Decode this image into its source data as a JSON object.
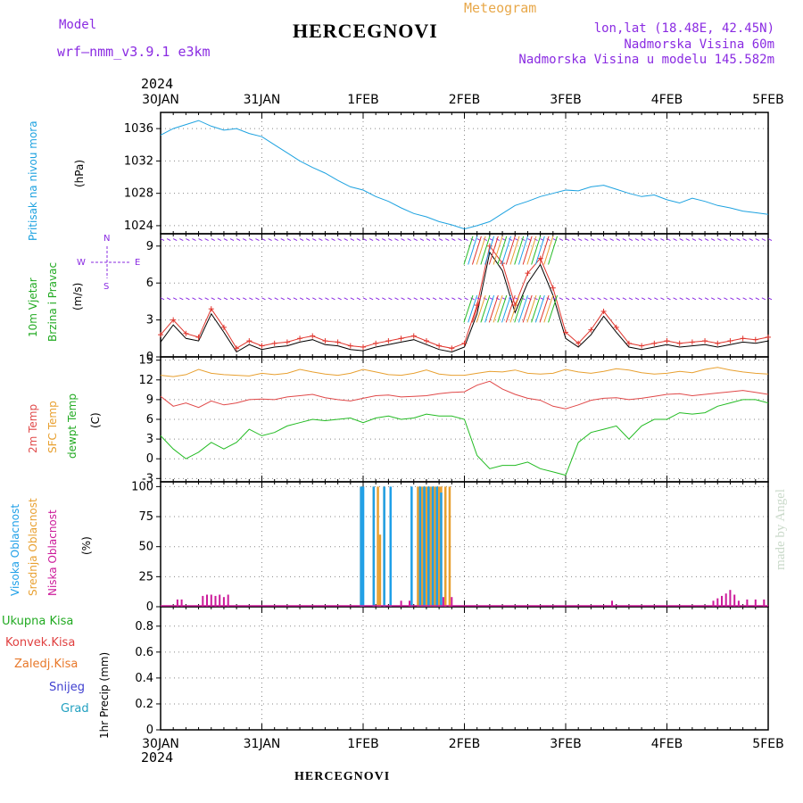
{
  "header": {
    "station": "HERCEGNOVI",
    "meteogram": "Meteogram",
    "model_label": "Model",
    "model_name": "wrf–nmm_v3.9.1 e3km",
    "lonlat": "lon,lat (18.48E, 42.45N)",
    "altitude": "Nadmorska Visina 60m",
    "altitude_model": "Nadmorska Visina u modelu 145.582m",
    "year": "2024",
    "credit": "made by Angel"
  },
  "colors": {
    "pressure": "#1da2e0",
    "wind_speed": "#000000",
    "wind_gust": "#e0342c",
    "t2m": "#e04848",
    "sfc": "#e8a030",
    "dewpt": "#22bb22",
    "cloud_high": "#1fa0e8",
    "cloud_mid": "#e8a030",
    "cloud_low": "#cc1a9a",
    "purple": "#8a2be2",
    "green": "#22aa22",
    "red": "#e04040",
    "orange": "#e8782a",
    "blue": "#4040d0",
    "cyan": "#20a0c0"
  },
  "chart_data": [
    {
      "type": "line",
      "name": "pressure",
      "ylabel_1": "Pritisak na nivou mora",
      "ylabel_2": "(hPa)",
      "x_ticks": [
        "30JAN",
        "31JAN",
        "1FEB",
        "2FEB",
        "3FEB",
        "4FEB",
        "5FEB"
      ],
      "yticks": [
        1024,
        1028,
        1032,
        1036
      ],
      "ylim": [
        1023,
        1038
      ],
      "x_hours": [
        0,
        3,
        6,
        9,
        12,
        15,
        18,
        21,
        24,
        27,
        30,
        33,
        36,
        39,
        42,
        45,
        48,
        51,
        54,
        57,
        60,
        63,
        66,
        69,
        72,
        75,
        78,
        81,
        84,
        87,
        90,
        93,
        96,
        99,
        102,
        105,
        108,
        111,
        114,
        117,
        120,
        123,
        126,
        129,
        132,
        135,
        138,
        141,
        144
      ],
      "values": [
        1035.2,
        1036.0,
        1036.5,
        1037.0,
        1036.3,
        1035.8,
        1036.0,
        1035.4,
        1035.0,
        1034.0,
        1033.0,
        1032.0,
        1031.2,
        1030.5,
        1029.6,
        1028.8,
        1028.4,
        1027.6,
        1027.0,
        1026.2,
        1025.5,
        1025.1,
        1024.5,
        1024.1,
        1023.6,
        1024.0,
        1024.5,
        1025.5,
        1026.5,
        1027.0,
        1027.6,
        1028.0,
        1028.4,
        1028.3,
        1028.8,
        1029.0,
        1028.5,
        1028.0,
        1027.6,
        1027.8,
        1027.2,
        1026.8,
        1027.4,
        1027.0,
        1026.5,
        1026.2,
        1025.8,
        1025.6,
        1025.4
      ]
    },
    {
      "type": "line",
      "name": "wind",
      "ylabel_1": "10m Vjetar",
      "ylabel_2": "Brzina i Pravac",
      "ylabel_3": "(m/s)",
      "compass_n": "N",
      "compass_w": "W",
      "compass_e": "E",
      "compass_s": "S",
      "x_ticks": [
        "30JAN",
        "31JAN",
        "1FEB",
        "2FEB",
        "3FEB",
        "4FEB",
        "5FEB"
      ],
      "yticks": [
        0,
        3,
        6,
        9
      ],
      "ylim": [
        0,
        10
      ],
      "x_hours": [
        0,
        3,
        6,
        9,
        12,
        15,
        18,
        21,
        24,
        27,
        30,
        33,
        36,
        39,
        42,
        45,
        48,
        51,
        54,
        57,
        60,
        63,
        66,
        69,
        72,
        75,
        78,
        81,
        84,
        87,
        90,
        93,
        96,
        99,
        102,
        105,
        108,
        111,
        114,
        117,
        120,
        123,
        126,
        129,
        132,
        135,
        138,
        141,
        144
      ],
      "speed": [
        1.2,
        2.6,
        1.5,
        1.3,
        3.5,
        2.0,
        0.4,
        1.0,
        0.6,
        0.8,
        0.9,
        1.2,
        1.4,
        1.0,
        0.9,
        0.6,
        0.5,
        0.8,
        1.0,
        1.2,
        1.4,
        1.0,
        0.6,
        0.4,
        0.8,
        3.5,
        8.5,
        7.0,
        3.6,
        6.0,
        7.5,
        5.0,
        1.5,
        0.8,
        1.8,
        3.3,
        2.0,
        0.8,
        0.6,
        0.8,
        1.0,
        0.8,
        0.9,
        1.0,
        0.8,
        1.0,
        1.2,
        1.1,
        1.3
      ],
      "gust": [
        1.8,
        3.0,
        1.9,
        1.6,
        3.9,
        2.4,
        0.7,
        1.3,
        0.9,
        1.1,
        1.2,
        1.5,
        1.7,
        1.3,
        1.2,
        0.9,
        0.8,
        1.1,
        1.3,
        1.5,
        1.7,
        1.3,
        0.9,
        0.7,
        1.1,
        4.2,
        9.0,
        7.6,
        4.2,
        6.8,
        8.0,
        5.6,
        2.0,
        1.1,
        2.2,
        3.7,
        2.4,
        1.1,
        0.9,
        1.1,
        1.3,
        1.1,
        1.2,
        1.3,
        1.1,
        1.3,
        1.5,
        1.4,
        1.6
      ]
    },
    {
      "type": "line",
      "name": "temperature",
      "ylabel_1": "2m Temp",
      "ylabel_2": "SFC Temp",
      "ylabel_3": "dewpt Temp",
      "ylabel_4": "(C)",
      "x_ticks": [
        "30JAN",
        "31JAN",
        "1FEB",
        "2FEB",
        "3FEB",
        "4FEB",
        "5FEB"
      ],
      "yticks": [
        -3,
        0,
        3,
        6,
        9,
        12,
        15
      ],
      "ylim": [
        -3.5,
        15.5
      ],
      "x_hours": [
        0,
        3,
        6,
        9,
        12,
        15,
        18,
        21,
        24,
        27,
        30,
        33,
        36,
        39,
        42,
        45,
        48,
        51,
        54,
        57,
        60,
        63,
        66,
        69,
        72,
        75,
        78,
        81,
        84,
        87,
        90,
        93,
        96,
        99,
        102,
        105,
        108,
        111,
        114,
        117,
        120,
        123,
        126,
        129,
        132,
        135,
        138,
        141,
        144
      ],
      "t2m": [
        9.5,
        8.0,
        8.5,
        7.8,
        8.8,
        8.2,
        8.5,
        9.0,
        9.1,
        9.0,
        9.4,
        9.6,
        9.8,
        9.3,
        9.0,
        8.8,
        9.2,
        9.6,
        9.7,
        9.4,
        9.5,
        9.6,
        9.9,
        10.1,
        10.2,
        11.2,
        11.8,
        10.6,
        9.8,
        9.2,
        8.9,
        8.0,
        7.6,
        8.2,
        8.9,
        9.2,
        9.3,
        9.0,
        9.2,
        9.5,
        9.8,
        9.9,
        9.6,
        9.8,
        10.0,
        10.2,
        10.4,
        10.1,
        9.8
      ],
      "sfc": [
        12.7,
        12.5,
        12.8,
        13.6,
        13.0,
        12.8,
        12.7,
        12.6,
        13.0,
        12.8,
        13.0,
        13.6,
        13.2,
        12.9,
        12.7,
        13.0,
        13.6,
        13.2,
        12.8,
        12.7,
        13.0,
        13.5,
        12.9,
        12.7,
        12.7,
        13.0,
        13.3,
        13.2,
        13.5,
        13.0,
        12.9,
        13.0,
        13.6,
        13.2,
        13.0,
        13.3,
        13.7,
        13.5,
        13.1,
        12.9,
        13.0,
        13.3,
        13.1,
        13.6,
        13.9,
        13.5,
        13.2,
        13.0,
        12.9
      ],
      "dewpt": [
        3.5,
        1.5,
        0.0,
        1.0,
        2.5,
        1.5,
        2.5,
        4.5,
        3.5,
        4.0,
        5.0,
        5.5,
        6.0,
        5.8,
        6.0,
        6.2,
        5.5,
        6.2,
        6.5,
        6.0,
        6.2,
        6.8,
        6.5,
        6.5,
        6.0,
        0.5,
        -1.5,
        -1.0,
        -1.0,
        -0.5,
        -1.5,
        -2.0,
        -2.5,
        2.5,
        4.0,
        4.5,
        5.0,
        3.0,
        5.0,
        6.0,
        6.0,
        7.0,
        6.8,
        7.0,
        8.0,
        8.5,
        9.0,
        9.0,
        8.5
      ]
    },
    {
      "type": "bar",
      "name": "cloud",
      "ylabel_1": "Visoka Oblacnost",
      "ylabel_2": "Srednja Oblacnost",
      "ylabel_3": "Niska Oblacnost",
      "ylabel_4": "(%)",
      "x_ticks": [
        "30JAN",
        "31JAN",
        "1FEB",
        "2FEB",
        "3FEB",
        "4FEB",
        "5FEB"
      ],
      "yticks": [
        0,
        25,
        50,
        75,
        100
      ],
      "ylim": [
        0,
        104
      ],
      "high": [
        [
          47.5,
          100
        ],
        [
          48,
          100
        ],
        [
          50.5,
          100
        ],
        [
          53,
          100
        ],
        [
          54.5,
          100
        ],
        [
          59.5,
          100
        ],
        [
          61.5,
          100
        ],
        [
          62.5,
          100
        ],
        [
          63.5,
          100
        ],
        [
          64.5,
          100
        ],
        [
          65.5,
          100
        ],
        [
          66.5,
          95
        ]
      ],
      "mid": [
        [
          47.5,
          100
        ],
        [
          50.5,
          100
        ],
        [
          51.5,
          100
        ],
        [
          52,
          60
        ],
        [
          53,
          100
        ],
        [
          61,
          100
        ],
        [
          61.5,
          100
        ],
        [
          62,
          100
        ],
        [
          62.5,
          100
        ],
        [
          63,
          100
        ],
        [
          63.5,
          100
        ],
        [
          64,
          100
        ],
        [
          64.5,
          100
        ],
        [
          65,
          100
        ],
        [
          65.5,
          100
        ],
        [
          66,
          100
        ],
        [
          66.5,
          100
        ],
        [
          67.5,
          100
        ],
        [
          68.5,
          100
        ]
      ],
      "low": [
        [
          4,
          6
        ],
        [
          5,
          6
        ],
        [
          10,
          9
        ],
        [
          11,
          10
        ],
        [
          12,
          10
        ],
        [
          13,
          9
        ],
        [
          14,
          10
        ],
        [
          15,
          8
        ],
        [
          16,
          10
        ],
        [
          57,
          5
        ],
        [
          59,
          5
        ],
        [
          67,
          8
        ],
        [
          69,
          8
        ],
        [
          107,
          5
        ],
        [
          131,
          5
        ],
        [
          132,
          7
        ],
        [
          133,
          9
        ],
        [
          134,
          11
        ],
        [
          135,
          14
        ],
        [
          136,
          10
        ],
        [
          137,
          5
        ],
        [
          139,
          6
        ],
        [
          141,
          6
        ],
        [
          143,
          6
        ]
      ]
    },
    {
      "type": "bar",
      "name": "precip",
      "ylabel_1": "Ukupna Kisa",
      "ylabel_2": "Konvek.Kisa",
      "ylabel_3": "Zaledj.Kisa",
      "ylabel_4": "Snijeg",
      "ylabel_5": "Grad",
      "ylabel_6": "1hr Precip (mm)",
      "x_ticks": [
        "30JAN",
        "31JAN",
        "1FEB",
        "2FEB",
        "3FEB",
        "4FEB",
        "5FEB"
      ],
      "yticks": [
        0,
        0.2,
        0.4,
        0.6,
        0.8
      ],
      "ylim": [
        0,
        0.95
      ],
      "values": []
    }
  ]
}
